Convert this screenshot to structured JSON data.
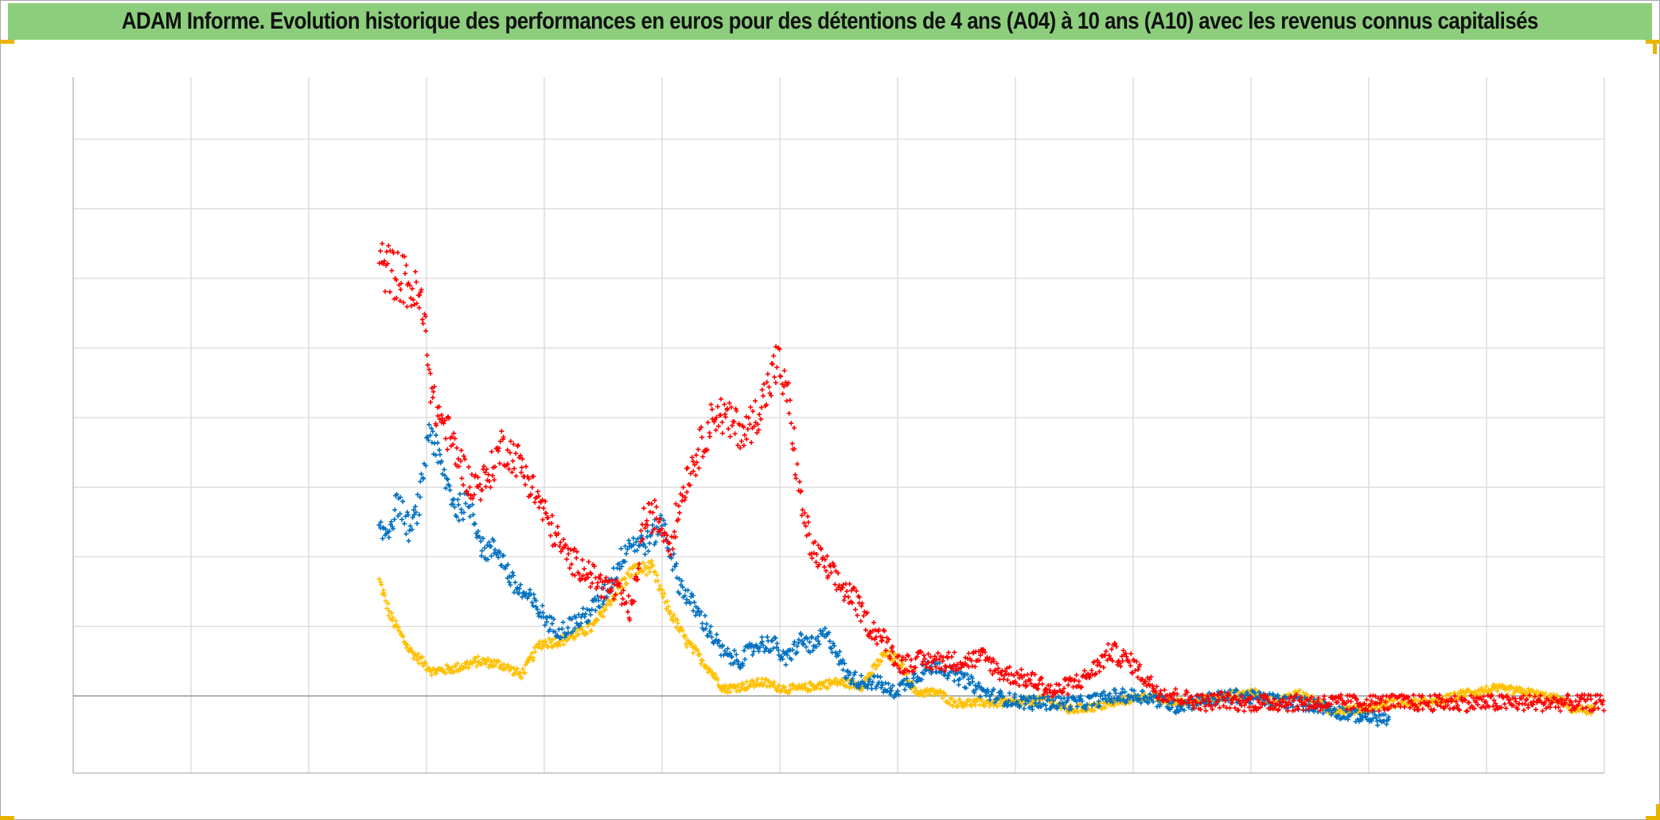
{
  "title": "ADAM Informe. Evolution historique des performances en euros pour des détentions de 4 ans (A04) à 10 ans (A10) avec les revenus connus capitalisés",
  "chart_data": {
    "type": "scatter",
    "marker": "plus",
    "grid": true,
    "legend": "none",
    "x_categories_count": 13,
    "ylim": [
      -1.1,
      9
    ],
    "series": [
      {
        "color": "#ffc000",
        "keypoints": [
          [
            0.4,
            1.65
          ],
          [
            0.414,
            1.15
          ],
          [
            0.44,
            0.65
          ],
          [
            0.47,
            0.35
          ],
          [
            0.5,
            0.4
          ],
          [
            0.53,
            0.5
          ],
          [
            0.56,
            0.45
          ],
          [
            0.585,
            0.3
          ],
          [
            0.61,
            0.75
          ],
          [
            0.64,
            0.8
          ],
          [
            0.68,
            1.0
          ],
          [
            0.7,
            1.35
          ],
          [
            0.73,
            1.8
          ],
          [
            0.755,
            1.85
          ],
          [
            0.775,
            1.3
          ],
          [
            0.8,
            0.8
          ],
          [
            0.83,
            0.4
          ],
          [
            0.85,
            0.1
          ],
          [
            0.88,
            0.15
          ],
          [
            0.9,
            0.2
          ],
          [
            0.93,
            0.1
          ],
          [
            0.95,
            0.1
          ],
          [
            0.97,
            0.15
          ],
          [
            1.0,
            0.2
          ],
          [
            1.03,
            0.15
          ],
          [
            1.06,
            0.6
          ],
          [
            1.08,
            0.5
          ],
          [
            1.1,
            0.05
          ],
          [
            1.13,
            0.05
          ],
          [
            1.15,
            -0.1
          ],
          [
            1.2,
            -0.1
          ],
          [
            1.24,
            -0.1
          ],
          [
            1.27,
            -0.05
          ],
          [
            1.3,
            -0.2
          ],
          [
            1.34,
            -0.15
          ],
          [
            1.4,
            0.0
          ],
          [
            1.44,
            -0.1
          ],
          [
            1.48,
            -0.05
          ],
          [
            1.51,
            0.0
          ],
          [
            1.54,
            0.05
          ],
          [
            1.57,
            -0.1
          ],
          [
            1.6,
            0.05
          ],
          [
            1.64,
            -0.2
          ],
          [
            1.68,
            -0.2
          ],
          [
            1.72,
            -0.1
          ],
          [
            1.78,
            -0.1
          ],
          [
            1.82,
            0.05
          ],
          [
            1.86,
            0.1
          ],
          [
            1.9,
            0.05
          ],
          [
            1.94,
            -0.05
          ],
          [
            1.96,
            -0.2
          ],
          [
            1.99,
            -0.2
          ]
        ],
        "noise": 0.06
      },
      {
        "color": "#0070c0",
        "keypoints": [
          [
            0.4,
            2.3
          ],
          [
            0.412,
            2.4
          ],
          [
            0.425,
            2.8
          ],
          [
            0.44,
            2.35
          ],
          [
            0.453,
            2.8
          ],
          [
            0.465,
            3.9
          ],
          [
            0.48,
            3.3
          ],
          [
            0.5,
            2.7
          ],
          [
            0.52,
            2.75
          ],
          [
            0.535,
            2.1
          ],
          [
            0.555,
            2.1
          ],
          [
            0.575,
            1.6
          ],
          [
            0.6,
            1.35
          ],
          [
            0.625,
            1.0
          ],
          [
            0.64,
            0.95
          ],
          [
            0.67,
            1.15
          ],
          [
            0.69,
            1.4
          ],
          [
            0.705,
            1.7
          ],
          [
            0.725,
            2.2
          ],
          [
            0.75,
            2.2
          ],
          [
            0.77,
            2.5
          ],
          [
            0.79,
            1.65
          ],
          [
            0.81,
            1.3
          ],
          [
            0.83,
            0.95
          ],
          [
            0.85,
            0.6
          ],
          [
            0.87,
            0.5
          ],
          [
            0.895,
            0.75
          ],
          [
            0.915,
            0.75
          ],
          [
            0.93,
            0.5
          ],
          [
            0.95,
            0.8
          ],
          [
            0.97,
            0.7
          ],
          [
            0.98,
            0.9
          ],
          [
            0.995,
            0.7
          ],
          [
            1.01,
            0.3
          ],
          [
            1.03,
            0.2
          ],
          [
            1.05,
            0.2
          ],
          [
            1.07,
            0.05
          ],
          [
            1.09,
            0.2
          ],
          [
            1.11,
            0.35
          ],
          [
            1.13,
            0.45
          ],
          [
            1.15,
            0.3
          ],
          [
            1.17,
            0.2
          ],
          [
            1.19,
            0.05
          ],
          [
            1.22,
            -0.05
          ],
          [
            1.25,
            -0.1
          ],
          [
            1.28,
            -0.1
          ],
          [
            1.32,
            -0.1
          ],
          [
            1.36,
            0.0
          ],
          [
            1.4,
            0.0
          ],
          [
            1.44,
            -0.15
          ],
          [
            1.48,
            -0.05
          ],
          [
            1.52,
            0.0
          ],
          [
            1.56,
            -0.05
          ],
          [
            1.6,
            -0.1
          ],
          [
            1.63,
            -0.15
          ],
          [
            1.66,
            -0.25
          ],
          [
            1.69,
            -0.3
          ],
          [
            1.72,
            -0.35
          ]
        ],
        "noise": 0.1
      },
      {
        "color": "#ff0000",
        "keypoints": [
          [
            0.4,
            6.2
          ],
          [
            0.415,
            6.1
          ],
          [
            0.43,
            6.0
          ],
          [
            0.445,
            5.8
          ],
          [
            0.455,
            5.6
          ],
          [
            0.463,
            5.0
          ],
          [
            0.47,
            4.2
          ],
          [
            0.485,
            3.9
          ],
          [
            0.5,
            3.5
          ],
          [
            0.52,
            3.0
          ],
          [
            0.54,
            3.1
          ],
          [
            0.56,
            3.6
          ],
          [
            0.58,
            3.4
          ],
          [
            0.6,
            3.0
          ],
          [
            0.625,
            2.4
          ],
          [
            0.645,
            2.0
          ],
          [
            0.67,
            1.8
          ],
          [
            0.69,
            1.6
          ],
          [
            0.71,
            1.5
          ],
          [
            0.73,
            1.2
          ],
          [
            0.745,
            2.5
          ],
          [
            0.76,
            2.6
          ],
          [
            0.78,
            2.2
          ],
          [
            0.8,
            3.1
          ],
          [
            0.82,
            3.6
          ],
          [
            0.84,
            4.1
          ],
          [
            0.86,
            3.9
          ],
          [
            0.88,
            3.8
          ],
          [
            0.9,
            4.2
          ],
          [
            0.92,
            4.8
          ],
          [
            0.935,
            4.2
          ],
          [
            0.95,
            2.8
          ],
          [
            0.965,
            2.1
          ],
          [
            0.98,
            1.9
          ],
          [
            1.0,
            1.6
          ],
          [
            1.02,
            1.4
          ],
          [
            1.04,
            1.0
          ],
          [
            1.06,
            0.8
          ],
          [
            1.08,
            0.45
          ],
          [
            1.1,
            0.5
          ],
          [
            1.13,
            0.5
          ],
          [
            1.16,
            0.5
          ],
          [
            1.19,
            0.55
          ],
          [
            1.21,
            0.35
          ],
          [
            1.24,
            0.25
          ],
          [
            1.26,
            0.2
          ],
          [
            1.28,
            0.05
          ],
          [
            1.3,
            0.15
          ],
          [
            1.32,
            0.25
          ],
          [
            1.34,
            0.45
          ],
          [
            1.355,
            0.65
          ],
          [
            1.37,
            0.55
          ],
          [
            1.385,
            0.45
          ],
          [
            1.4,
            0.25
          ],
          [
            1.42,
            0.05
          ],
          [
            1.44,
            0.0
          ],
          [
            1.46,
            -0.05
          ],
          [
            1.48,
            -0.1
          ],
          [
            1.5,
            -0.05
          ],
          [
            1.52,
            -0.1
          ],
          [
            1.56,
            -0.1
          ],
          [
            1.6,
            -0.1
          ],
          [
            1.7,
            -0.1
          ],
          [
            1.8,
            -0.1
          ],
          [
            2.0,
            -0.1
          ]
        ],
        "noise": 0.12
      }
    ]
  }
}
